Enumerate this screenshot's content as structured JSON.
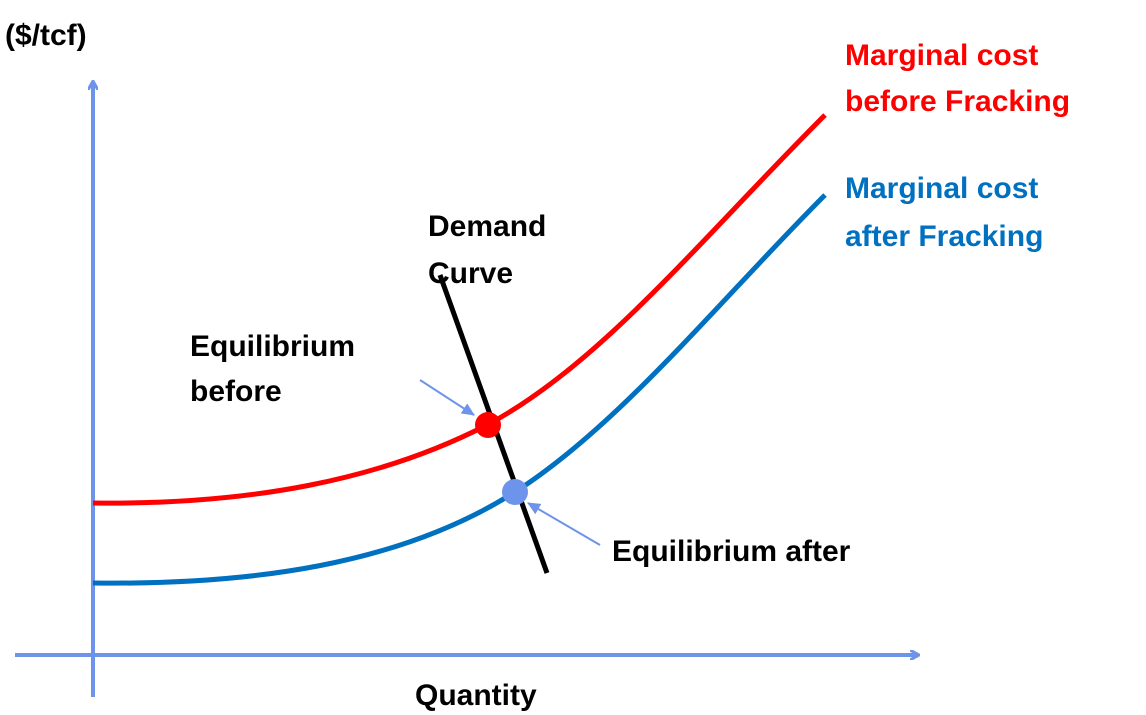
{
  "y_axis_label": "($/tcf)",
  "x_axis_label": "Quantity",
  "mc_before": [
    "Marginal cost",
    "before Fracking"
  ],
  "mc_after": [
    "Marginal cost",
    "after Fracking"
  ],
  "demand": [
    "Demand",
    "Curve"
  ],
  "equilibrium_before": [
    "Equilibrium",
    "before"
  ],
  "equilibrium_after": "Equilibrium after"
}
